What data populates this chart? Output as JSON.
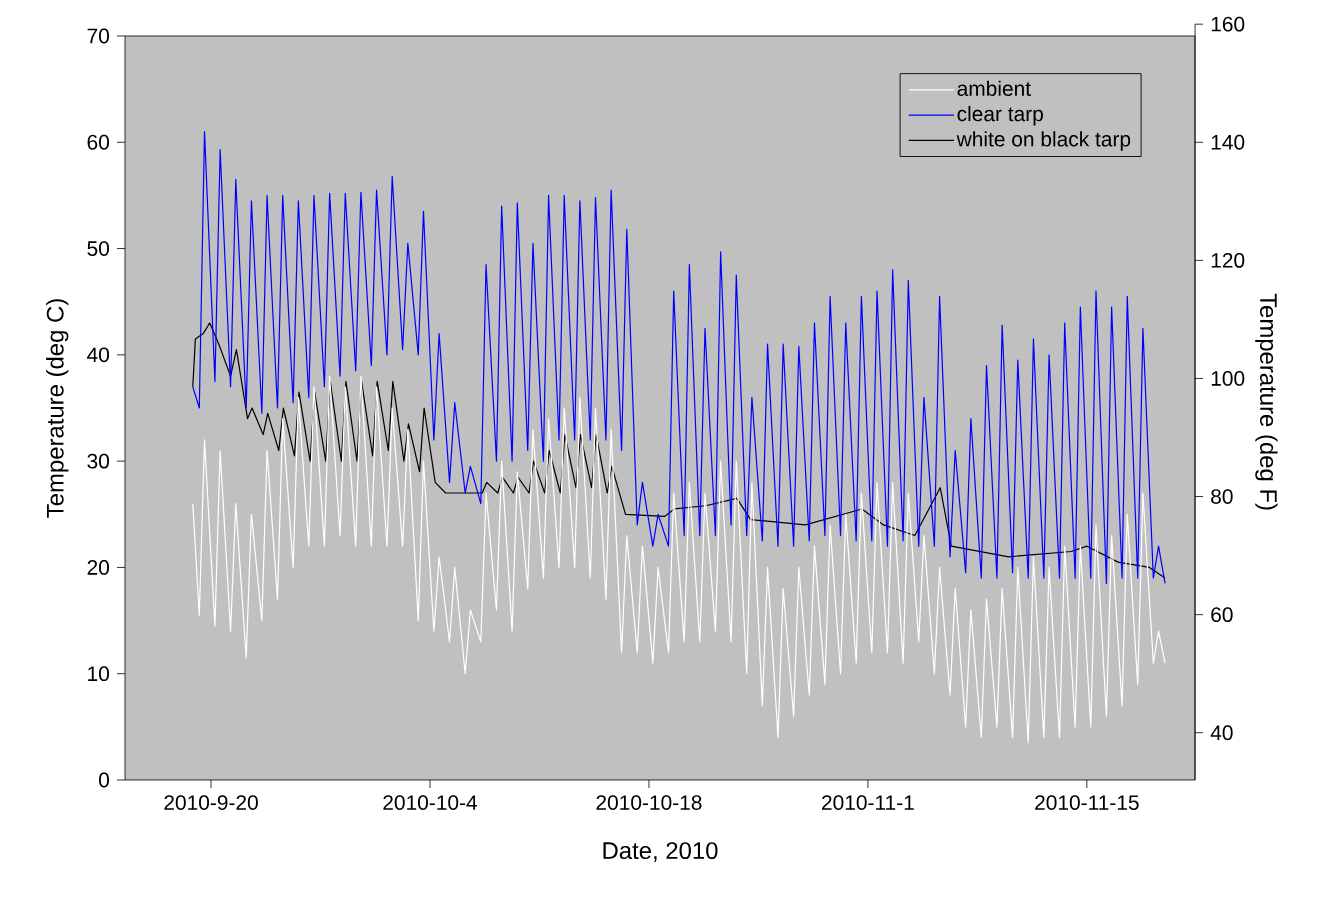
{
  "chart_data": {
    "type": "line",
    "xlabel": "Date, 2010",
    "ylabel": "Temperature (deg C)",
    "y2label": "Temperature (deg F)",
    "xlim": [
      "2010-09-14T12:00",
      "2010-11-21T22:00"
    ],
    "xticks": [
      {
        "value": "2010-09-20",
        "label": "2010-9-20"
      },
      {
        "value": "2010-10-04",
        "label": "2010-10-4"
      },
      {
        "value": "2010-10-18",
        "label": "2010-10-18"
      },
      {
        "value": "2010-11-01",
        "label": "2010-11-1"
      },
      {
        "value": "2010-11-15",
        "label": "2010-11-15"
      }
    ],
    "ylim": [
      0,
      70
    ],
    "yticks": [
      0,
      10,
      20,
      30,
      40,
      50,
      60,
      70
    ],
    "y2lim": [
      32,
      160
    ],
    "y2ticks": [
      40,
      60,
      80,
      100,
      120,
      140,
      160
    ],
    "legend": "top right",
    "marker": "none",
    "line_style": "solid",
    "series": [
      {
        "name": "ambient",
        "color": "#ffffff",
        "x": [
          "2010-09-18T20:00",
          "2010-09-19T06:00",
          "2010-09-19T14:00",
          "2010-09-20T06:00",
          "2010-09-20T14:00",
          "2010-09-21T06:00",
          "2010-09-21T14:00",
          "2010-09-22T06:00",
          "2010-09-22T14:00",
          "2010-09-23T06:00",
          "2010-09-23T14:00",
          "2010-09-24T06:00",
          "2010-09-24T14:00",
          "2010-09-25T06:00",
          "2010-09-25T14:00",
          "2010-09-26T06:00",
          "2010-09-26T14:00",
          "2010-09-27T06:00",
          "2010-09-27T14:00",
          "2010-09-28T06:00",
          "2010-09-28T14:00",
          "2010-09-29T06:00",
          "2010-09-29T14:00",
          "2010-09-30T06:00",
          "2010-09-30T14:00",
          "2010-10-01T06:00",
          "2010-10-01T14:00",
          "2010-10-02T06:00",
          "2010-10-02T14:00",
          "2010-10-03T06:00",
          "2010-10-03T14:00",
          "2010-10-04T06:00",
          "2010-10-04T14:00",
          "2010-10-05T06:00",
          "2010-10-05T14:00",
          "2010-10-06T06:00",
          "2010-10-06T14:00",
          "2010-10-07T06:00",
          "2010-10-07T14:00",
          "2010-10-08T06:00",
          "2010-10-08T14:00",
          "2010-10-09T06:00",
          "2010-10-09T14:00",
          "2010-10-10T06:00",
          "2010-10-10T14:00",
          "2010-10-11T06:00",
          "2010-10-11T14:00",
          "2010-10-12T06:00",
          "2010-10-12T14:00",
          "2010-10-13T06:00",
          "2010-10-13T14:00",
          "2010-10-14T06:00",
          "2010-10-14T14:00",
          "2010-10-15T06:00",
          "2010-10-15T14:00",
          "2010-10-16T06:00",
          "2010-10-16T14:00",
          "2010-10-17T06:00",
          "2010-10-17T14:00",
          "2010-10-18T06:00",
          "2010-10-18T14:00",
          "2010-10-19T06:00",
          "2010-10-19T14:00",
          "2010-10-20T06:00",
          "2010-10-20T14:00",
          "2010-10-21T06:00",
          "2010-10-21T14:00",
          "2010-10-22T06:00",
          "2010-10-22T14:00",
          "2010-10-23T06:00",
          "2010-10-23T14:00",
          "2010-10-24T06:00",
          "2010-10-24T14:00",
          "2010-10-25T06:00",
          "2010-10-25T14:00",
          "2010-10-26T06:00",
          "2010-10-26T14:00",
          "2010-10-27T06:00",
          "2010-10-27T14:00",
          "2010-10-28T06:00",
          "2010-10-28T14:00",
          "2010-10-29T06:00",
          "2010-10-29T14:00",
          "2010-10-30T06:00",
          "2010-10-30T14:00",
          "2010-10-31T06:00",
          "2010-10-31T14:00",
          "2010-11-01T06:00",
          "2010-11-01T14:00",
          "2010-11-02T06:00",
          "2010-11-02T14:00",
          "2010-11-03T06:00",
          "2010-11-03T14:00",
          "2010-11-04T06:00",
          "2010-11-04T14:00",
          "2010-11-05T06:00",
          "2010-11-05T14:00",
          "2010-11-06T06:00",
          "2010-11-06T14:00",
          "2010-11-07T06:00",
          "2010-11-07T14:00",
          "2010-11-08T06:00",
          "2010-11-08T14:00",
          "2010-11-09T06:00",
          "2010-11-09T14:00",
          "2010-11-10T06:00",
          "2010-11-10T14:00",
          "2010-11-11T06:00",
          "2010-11-11T14:00",
          "2010-11-12T06:00",
          "2010-11-12T14:00",
          "2010-11-13T06:00",
          "2010-11-13T14:00",
          "2010-11-14T06:00",
          "2010-11-14T14:00",
          "2010-11-15T06:00",
          "2010-11-15T14:00",
          "2010-11-16T06:00",
          "2010-11-16T14:00",
          "2010-11-17T06:00",
          "2010-11-17T14:00",
          "2010-11-18T06:00",
          "2010-11-18T14:00",
          "2010-11-19T06:00",
          "2010-11-19T14:00",
          "2010-11-20T00:00"
        ],
        "values": [
          26,
          15.5,
          32,
          14.5,
          31,
          14,
          26,
          11.5,
          25,
          15,
          31,
          17,
          34,
          20,
          36,
          22,
          37,
          22,
          38,
          23,
          37,
          22,
          38,
          22,
          37,
          22,
          35,
          22,
          33,
          15,
          30,
          14,
          21,
          13,
          20,
          10,
          16,
          13,
          27,
          16,
          30,
          14,
          29,
          18,
          33,
          19,
          34,
          20,
          35,
          20,
          36,
          19,
          35,
          17,
          33,
          12,
          23,
          12,
          22,
          11,
          20,
          12,
          27,
          13,
          28,
          13,
          27,
          14,
          30,
          13,
          30,
          10,
          28,
          7,
          20,
          4,
          18,
          6,
          20,
          8,
          22,
          9,
          24,
          10,
          25,
          11,
          27,
          12,
          28,
          12,
          28,
          11,
          27,
          13,
          23,
          10,
          20,
          8,
          18,
          5,
          16,
          4,
          17,
          5,
          18,
          4,
          20,
          3.5,
          21,
          4,
          20,
          4,
          22,
          5,
          22,
          5,
          24,
          6,
          23,
          7,
          25,
          9,
          27,
          11,
          14,
          11
        ]
      },
      {
        "name": "clear tarp",
        "color": "#0000ff",
        "x": [
          "2010-09-18T20:00",
          "2010-09-19T06:00",
          "2010-09-19T14:00",
          "2010-09-20T06:00",
          "2010-09-20T14:00",
          "2010-09-21T06:00",
          "2010-09-21T14:00",
          "2010-09-22T06:00",
          "2010-09-22T14:00",
          "2010-09-23T06:00",
          "2010-09-23T14:00",
          "2010-09-24T06:00",
          "2010-09-24T14:00",
          "2010-09-25T06:00",
          "2010-09-25T14:00",
          "2010-09-26T06:00",
          "2010-09-26T14:00",
          "2010-09-27T06:00",
          "2010-09-27T14:00",
          "2010-09-28T06:00",
          "2010-09-28T14:00",
          "2010-09-29T06:00",
          "2010-09-29T14:00",
          "2010-09-30T06:00",
          "2010-09-30T14:00",
          "2010-10-01T06:00",
          "2010-10-01T14:00",
          "2010-10-02T06:00",
          "2010-10-02T14:00",
          "2010-10-03T06:00",
          "2010-10-03T14:00",
          "2010-10-04T06:00",
          "2010-10-04T14:00",
          "2010-10-05T06:00",
          "2010-10-05T14:00",
          "2010-10-06T06:00",
          "2010-10-06T14:00",
          "2010-10-07T06:00",
          "2010-10-07T14:00",
          "2010-10-08T06:00",
          "2010-10-08T14:00",
          "2010-10-09T06:00",
          "2010-10-09T14:00",
          "2010-10-10T06:00",
          "2010-10-10T14:00",
          "2010-10-11T06:00",
          "2010-10-11T14:00",
          "2010-10-12T06:00",
          "2010-10-12T14:00",
          "2010-10-13T06:00",
          "2010-10-13T14:00",
          "2010-10-14T06:00",
          "2010-10-14T14:00",
          "2010-10-15T06:00",
          "2010-10-15T14:00",
          "2010-10-16T06:00",
          "2010-10-16T14:00",
          "2010-10-17T06:00",
          "2010-10-17T14:00",
          "2010-10-18T06:00",
          "2010-10-18T14:00",
          "2010-10-19T06:00",
          "2010-10-19T14:00",
          "2010-10-20T06:00",
          "2010-10-20T14:00",
          "2010-10-21T06:00",
          "2010-10-21T14:00",
          "2010-10-22T06:00",
          "2010-10-22T14:00",
          "2010-10-23T06:00",
          "2010-10-23T14:00",
          "2010-10-24T06:00",
          "2010-10-24T14:00",
          "2010-10-25T06:00",
          "2010-10-25T14:00",
          "2010-10-26T06:00",
          "2010-10-26T14:00",
          "2010-10-27T06:00",
          "2010-10-27T14:00",
          "2010-10-28T06:00",
          "2010-10-28T14:00",
          "2010-10-29T06:00",
          "2010-10-29T14:00",
          "2010-10-30T06:00",
          "2010-10-30T14:00",
          "2010-10-31T06:00",
          "2010-10-31T14:00",
          "2010-11-01T06:00",
          "2010-11-01T14:00",
          "2010-11-02T06:00",
          "2010-11-02T14:00",
          "2010-11-03T06:00",
          "2010-11-03T14:00",
          "2010-11-04T06:00",
          "2010-11-04T14:00",
          "2010-11-05T06:00",
          "2010-11-05T14:00",
          "2010-11-06T06:00",
          "2010-11-06T14:00",
          "2010-11-07T06:00",
          "2010-11-07T14:00",
          "2010-11-08T06:00",
          "2010-11-08T14:00",
          "2010-11-09T06:00",
          "2010-11-09T14:00",
          "2010-11-10T06:00",
          "2010-11-10T14:00",
          "2010-11-11T06:00",
          "2010-11-11T14:00",
          "2010-11-12T06:00",
          "2010-11-12T14:00",
          "2010-11-13T06:00",
          "2010-11-13T14:00",
          "2010-11-14T06:00",
          "2010-11-14T14:00",
          "2010-11-15T06:00",
          "2010-11-15T14:00",
          "2010-11-16T06:00",
          "2010-11-16T14:00",
          "2010-11-17T06:00",
          "2010-11-17T14:00",
          "2010-11-18T06:00",
          "2010-11-18T14:00",
          "2010-11-19T06:00",
          "2010-11-19T14:00",
          "2010-11-20T00:00"
        ],
        "values": [
          37,
          35,
          61,
          37.5,
          59.3,
          37,
          56.5,
          35,
          54.5,
          34.5,
          55,
          35,
          55,
          35.5,
          54.5,
          36,
          55,
          37,
          55.2,
          38,
          55.2,
          38.5,
          55.3,
          39,
          55.5,
          40,
          56.8,
          40.5,
          50.5,
          40,
          53.5,
          32,
          42,
          28,
          35.5,
          27,
          29.5,
          26,
          48.5,
          30,
          54,
          30,
          54.3,
          31,
          50.5,
          30,
          55,
          32,
          55,
          32,
          54.5,
          32,
          54.8,
          32,
          55.5,
          31,
          51.8,
          24,
          28,
          22,
          25,
          22,
          46,
          23,
          48.5,
          23,
          42.5,
          23,
          49.7,
          24,
          47.5,
          23,
          36,
          22.5,
          41,
          22,
          41,
          22,
          40.8,
          22.5,
          43,
          23,
          45.5,
          23,
          43,
          22.5,
          45.5,
          22.5,
          46,
          22,
          48,
          22.5,
          47,
          22,
          36,
          22,
          45.5,
          21,
          31,
          19.5,
          34,
          19,
          39,
          19,
          42.8,
          19.5,
          39.5,
          19,
          41.5,
          19,
          40,
          19,
          43,
          19,
          44.5,
          19,
          46,
          18.5,
          44.5,
          19,
          45.5,
          19,
          42.5,
          19,
          22,
          18.5
        ]
      },
      {
        "name": "white on black tarp",
        "color": "#000000",
        "x": [
          "2010-09-18T20:00",
          "2010-09-19T00:00",
          "2010-09-19T12:00",
          "2010-09-19T22:00",
          "2010-09-20T12:00",
          "2010-09-21T06:00",
          "2010-09-21T15:00",
          "2010-09-22T08:00",
          "2010-09-22T15:00",
          "2010-09-23T08:00",
          "2010-09-23T15:00",
          "2010-09-24T08:00",
          "2010-09-24T15:00",
          "2010-09-25T08:00",
          "2010-09-25T15:00",
          "2010-09-26T08:00",
          "2010-09-26T15:00",
          "2010-09-27T08:00",
          "2010-09-27T15:00",
          "2010-09-28T08:00",
          "2010-09-28T15:00",
          "2010-09-29T08:00",
          "2010-09-29T15:00",
          "2010-09-30T08:00",
          "2010-09-30T15:00",
          "2010-10-01T08:00",
          "2010-10-01T15:00",
          "2010-10-02T08:00",
          "2010-10-02T15:00",
          "2010-10-03T08:00",
          "2010-10-03T15:00",
          "2010-10-04T08:00",
          "2010-10-05T00:00",
          "2010-10-06T12:00",
          "2010-10-07T08:00",
          "2010-10-07T15:00",
          "2010-10-08T08:00",
          "2010-10-08T15:00",
          "2010-10-09T08:00",
          "2010-10-09T15:00",
          "2010-10-10T08:00",
          "2010-10-10T15:00",
          "2010-10-11T08:00",
          "2010-10-11T15:00",
          "2010-10-12T08:00",
          "2010-10-12T15:00",
          "2010-10-13T08:00",
          "2010-10-13T15:00",
          "2010-10-14T08:00",
          "2010-10-14T15:00",
          "2010-10-15T08:00",
          "2010-10-15T15:00",
          "2010-10-16T12:00",
          "2010-10-19T00:00",
          "2010-10-19T15:00",
          "2010-10-21T15:00",
          "2010-10-23T15:00",
          "2010-10-24T12:00",
          "2010-10-28T00:00",
          "2010-10-31T15:00",
          "2010-11-02T00:00",
          "2010-11-04T00:00",
          "2010-11-05T15:00",
          "2010-11-06T08:00",
          "2010-11-10T00:00",
          "2010-11-14T00:00",
          "2010-11-15T00:00",
          "2010-11-17T00:00",
          "2010-11-19T00:00",
          "2010-11-20T00:00"
        ],
        "values": [
          37,
          41.5,
          42,
          43,
          41,
          38,
          40.5,
          34,
          35,
          32.5,
          34.5,
          31,
          35,
          30.5,
          36.5,
          30,
          36.5,
          30,
          37.5,
          30,
          37.5,
          30,
          37.5,
          30.5,
          37.5,
          31,
          37.5,
          30,
          33.5,
          29,
          35,
          28,
          27,
          27,
          27,
          28,
          27,
          28.5,
          27,
          28.5,
          27,
          30,
          27,
          31,
          27,
          32.5,
          27.5,
          32.5,
          27.5,
          32.5,
          27,
          29.5,
          25,
          24.8,
          25.5,
          25.8,
          26.5,
          24.5,
          24,
          25.5,
          24,
          23,
          27.5,
          22,
          21,
          21.5,
          22,
          20.5,
          20,
          19
        ]
      }
    ]
  }
}
